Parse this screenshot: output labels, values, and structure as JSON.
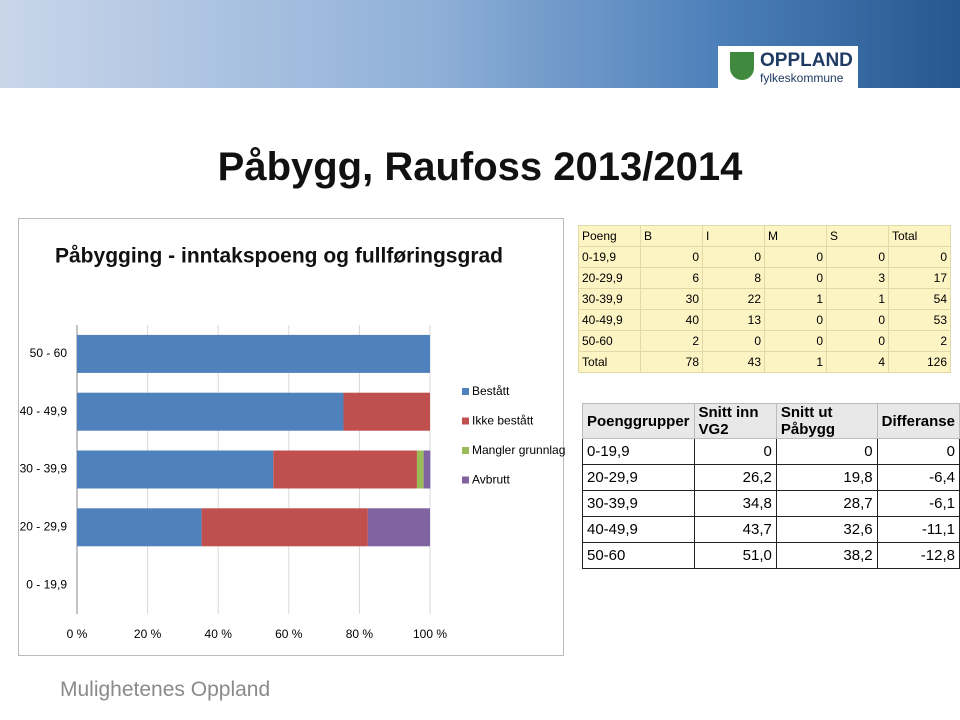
{
  "header": {
    "logo_name": "OPPLAND",
    "logo_sub": "fylkeskommune"
  },
  "page_title": "Påbygg, Raufoss 2013/2014",
  "footer": "Mulighetenes Oppland",
  "chart_data": {
    "type": "stacked-bar-horizontal",
    "title": "Påbygging - inntakspoeng og fullføringsgrad",
    "categories": [
      "0 - 19,9",
      "20 - 29,9",
      "30 - 39,9",
      "40 - 49,9",
      "50 - 60"
    ],
    "series": [
      {
        "name": "Bestått",
        "color": "#4f81bd",
        "values": [
          0,
          35.3,
          55.6,
          75.5,
          100
        ]
      },
      {
        "name": "Ikke bestått",
        "color": "#c0504d",
        "values": [
          0,
          47.1,
          40.7,
          24.5,
          0
        ]
      },
      {
        "name": "Mangler grunnlag",
        "color": "#9bbb59",
        "values": [
          0,
          0,
          1.9,
          0,
          0
        ]
      },
      {
        "name": "Avbrutt",
        "color": "#8064a2",
        "values": [
          0,
          17.6,
          1.9,
          0,
          0
        ]
      }
    ],
    "xlim": [
      0,
      100
    ],
    "xticks": [
      {
        "value": 0,
        "label": "0 %"
      },
      {
        "value": 20,
        "label": "20 %"
      },
      {
        "value": 40,
        "label": "40 %"
      },
      {
        "value": 60,
        "label": "60 %"
      },
      {
        "value": 80,
        "label": "80 %"
      },
      {
        "value": 100,
        "label": "100 %"
      }
    ],
    "grid": true,
    "legend": "right"
  },
  "tables": [
    {
      "columns": [
        "Poeng",
        "B",
        "I",
        "M",
        "S",
        "Total"
      ],
      "rows": [
        [
          "0-19,9",
          0,
          0,
          0,
          0,
          0
        ],
        [
          "20-29,9",
          6,
          8,
          0,
          3,
          17
        ],
        [
          "30-39,9",
          30,
          22,
          1,
          1,
          54
        ],
        [
          "40-49,9",
          40,
          13,
          0,
          0,
          53
        ],
        [
          "50-60",
          2,
          0,
          0,
          0,
          2
        ],
        [
          "Total",
          78,
          43,
          1,
          4,
          126
        ]
      ]
    },
    {
      "columns": [
        "Poenggrupper",
        "Snitt inn VG2",
        "Snitt ut Påbygg",
        "Differanse"
      ],
      "rows": [
        [
          "0-19,9",
          "0",
          "0",
          "0"
        ],
        [
          "20-29,9",
          "26,2",
          "19,8",
          "-6,4"
        ],
        [
          "30-39,9",
          "34,8",
          "28,7",
          "-6,1"
        ],
        [
          "40-49,9",
          "43,7",
          "32,6",
          "-11,1"
        ],
        [
          "50-60",
          "51,0",
          "38,2",
          "-12,8"
        ]
      ]
    }
  ]
}
